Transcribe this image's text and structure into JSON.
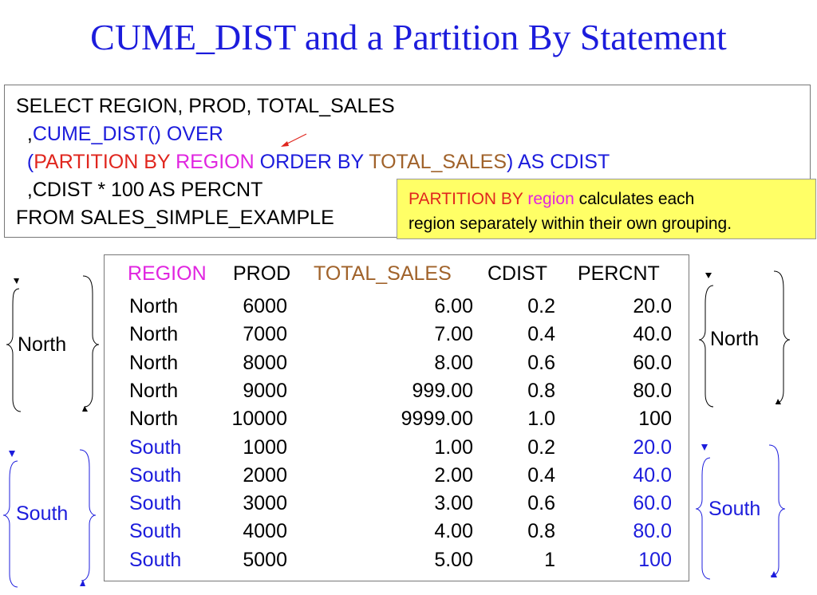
{
  "title": "CUME_DIST and a Partition By Statement",
  "sql": {
    "line1": "SELECT REGION, PROD, TOTAL_SALES",
    "line2_prefix": "  ,",
    "line2_func": "CUME_DIST() OVER",
    "line3_indent": "  ",
    "line3_open": "(",
    "line3_partition": "PARTITION BY ",
    "line3_region": "REGION",
    "line3_order": " ORDER BY ",
    "line3_sales": "TOTAL_SALES",
    "line3_close": ") AS CDIST",
    "line4": "  ,CDIST * 100 AS PERCNT",
    "line5": "FROM SALES_SIMPLE_EXAMPLE"
  },
  "note": {
    "part1": "PARTITION BY ",
    "part2": "region",
    "part3": " calculates each",
    "line2": "region separately within their own grouping."
  },
  "columns": [
    "REGION",
    "PROD",
    "TOTAL_SALES",
    "CDIST",
    "PERCNT"
  ],
  "rows": [
    {
      "region": "North",
      "prod": "6000",
      "total_sales": "6.00",
      "cdist": "0.2",
      "percnt": "20.0"
    },
    {
      "region": "North",
      "prod": "7000",
      "total_sales": "7.00",
      "cdist": "0.4",
      "percnt": "40.0"
    },
    {
      "region": "North",
      "prod": "8000",
      "total_sales": "8.00",
      "cdist": "0.6",
      "percnt": "60.0"
    },
    {
      "region": "North",
      "prod": "9000",
      "total_sales": "999.00",
      "cdist": "0.8",
      "percnt": "80.0"
    },
    {
      "region": "North",
      "prod": "10000",
      "total_sales": "9999.00",
      "cdist": "1.0",
      "percnt": "100"
    },
    {
      "region": "South",
      "prod": "1000",
      "total_sales": "1.00",
      "cdist": "0.2",
      "percnt": "20.0"
    },
    {
      "region": "South",
      "prod": "2000",
      "total_sales": "2.00",
      "cdist": "0.4",
      "percnt": "40.0"
    },
    {
      "region": "South",
      "prod": "3000",
      "total_sales": "3.00",
      "cdist": "0.6",
      "percnt": "60.0"
    },
    {
      "region": "South",
      "prod": "4000",
      "total_sales": "4.00",
      "cdist": "0.8",
      "percnt": "80.0"
    },
    {
      "region": "South",
      "prod": "5000",
      "total_sales": "5.00",
      "cdist": "1",
      "percnt": "100"
    }
  ],
  "groups": {
    "left_north": "North",
    "left_south": "South",
    "right_north": "North",
    "right_south": "South"
  },
  "colors": {
    "title": "#1c1cdc",
    "north_text": "#000000",
    "south_text": "#1c1cdc",
    "header_region": "#e025e0",
    "header_sales": "#a0622a",
    "note_bg": "#ffff66"
  }
}
